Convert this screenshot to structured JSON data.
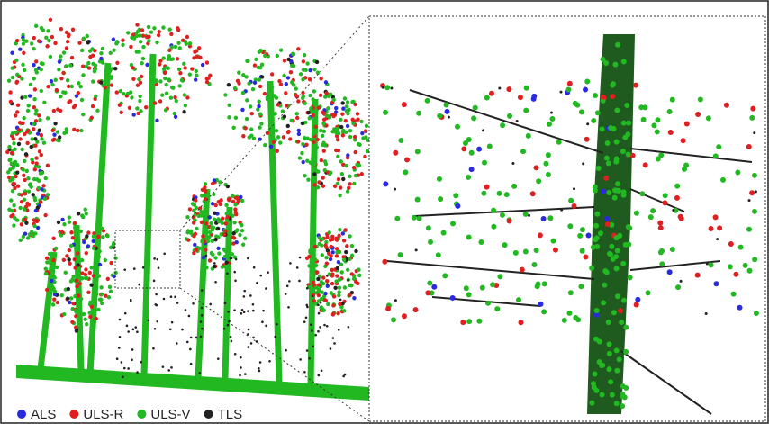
{
  "legend": {
    "items": [
      {
        "label": "ALS",
        "color": "#2a2adf"
      },
      {
        "label": "ULS-R",
        "color": "#e02020"
      },
      {
        "label": "ULS-V",
        "color": "#22b822"
      },
      {
        "label": "TLS",
        "color": "#222222"
      }
    ]
  }
}
